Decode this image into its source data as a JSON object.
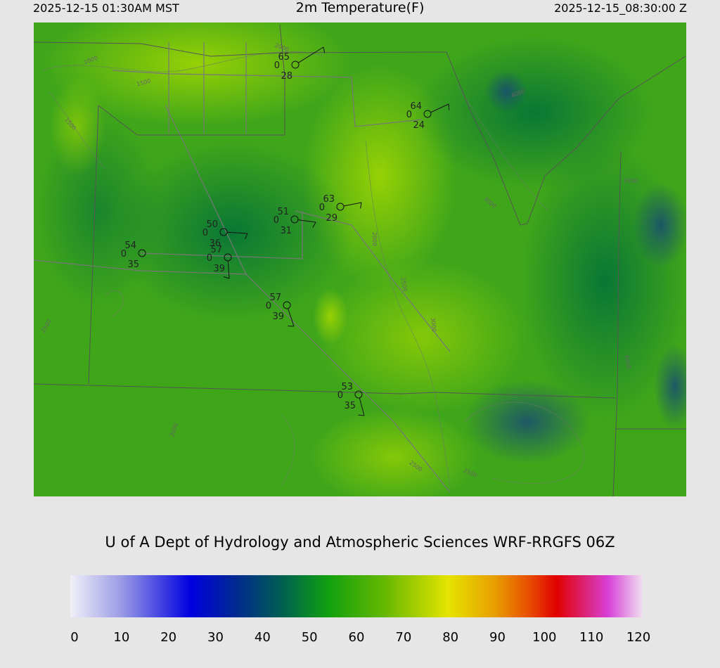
{
  "header": {
    "left": "2025-12-15 01:30AM MST",
    "title": "2m Temperature(F)",
    "right": "2025-12-15_08:30:00 Z"
  },
  "stations": [
    {
      "temp": "65",
      "wind": "0",
      "dew": "28"
    },
    {
      "temp": "64",
      "wind": "0",
      "dew": "24"
    },
    {
      "temp": "63",
      "wind": "0",
      "dew": "29"
    },
    {
      "temp": "51",
      "wind": "0",
      "dew": "31"
    },
    {
      "temp": "50",
      "wind": "0",
      "dew": "36"
    },
    {
      "temp": "57",
      "wind": "0",
      "dew": "39"
    },
    {
      "temp": "54",
      "wind": "0",
      "dew": "35"
    },
    {
      "temp": "57",
      "wind": "0",
      "dew": "39"
    },
    {
      "temp": "53",
      "wind": "0",
      "dew": "35"
    }
  ],
  "contour_labels": [
    "1000",
    "1500",
    "1500",
    "2000",
    "2000",
    "2500",
    "3000",
    "3000",
    "4000",
    "2500",
    "2500",
    "3500",
    "4000",
    "2000",
    "2500"
  ],
  "footer": "U of A Dept of Hydrology and Atmospheric Sciences WRF-RRGFS 06Z",
  "colorbar": {
    "ticks": [
      0,
      10,
      20,
      30,
      40,
      50,
      60,
      70,
      80,
      90,
      100,
      110,
      120
    ],
    "range": [
      0,
      120
    ]
  }
}
